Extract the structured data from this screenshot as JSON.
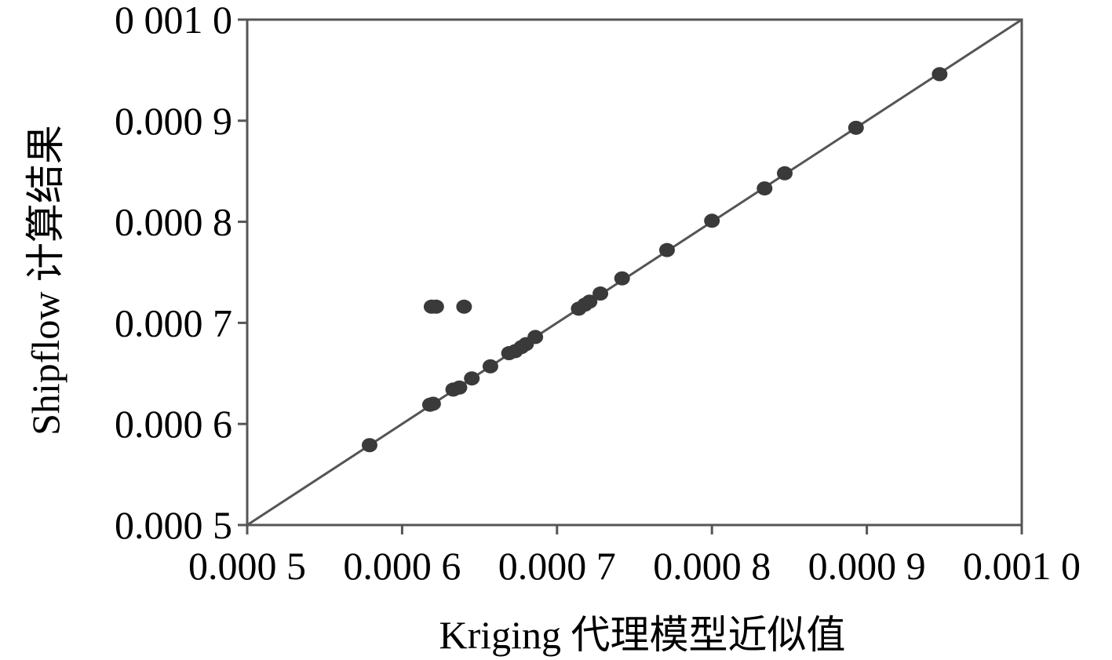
{
  "chart_data": {
    "type": "scatter",
    "title": "",
    "xlabel": "Kriging 代理模型近似值",
    "ylabel": "Shipflow 计算结果",
    "xlim": [
      0.0005,
      0.001
    ],
    "ylim": [
      0.0005,
      0.001
    ],
    "xticks": [
      {
        "value": 0.0005,
        "label": "0.000 5"
      },
      {
        "value": 0.0006,
        "label": "0.000 6"
      },
      {
        "value": 0.0007,
        "label": "0.000 7"
      },
      {
        "value": 0.0008,
        "label": "0.000 8"
      },
      {
        "value": 0.0009,
        "label": "0.000 9"
      },
      {
        "value": 0.001,
        "label": "0.001 0"
      }
    ],
    "yticks": [
      {
        "value": 0.0005,
        "label": "0.000 5"
      },
      {
        "value": 0.0006,
        "label": "0.000 6"
      },
      {
        "value": 0.0007,
        "label": "0.000 7"
      },
      {
        "value": 0.0008,
        "label": "0.000 8"
      },
      {
        "value": 0.0009,
        "label": "0.000 9"
      },
      {
        "value": 0.001,
        "label": "0 001 0"
      }
    ],
    "reference_line": {
      "from": [
        0.0005,
        0.0005
      ],
      "to": [
        0.001,
        0.001
      ]
    },
    "grid": false,
    "marker_color": "#3a3a3a",
    "line_color": "#555555",
    "points": [
      {
        "x": 0.000579,
        "y": 0.000579
      },
      {
        "x": 0.000618,
        "y": 0.000619
      },
      {
        "x": 0.00062,
        "y": 0.00062
      },
      {
        "x": 0.000633,
        "y": 0.000634
      },
      {
        "x": 0.000637,
        "y": 0.000636
      },
      {
        "x": 0.000645,
        "y": 0.000645
      },
      {
        "x": 0.000657,
        "y": 0.000657
      },
      {
        "x": 0.000669,
        "y": 0.00067
      },
      {
        "x": 0.000673,
        "y": 0.000672
      },
      {
        "x": 0.000677,
        "y": 0.000676
      },
      {
        "x": 0.00068,
        "y": 0.000679
      },
      {
        "x": 0.000686,
        "y": 0.000686
      },
      {
        "x": 0.000714,
        "y": 0.000714
      },
      {
        "x": 0.000718,
        "y": 0.000718
      },
      {
        "x": 0.000721,
        "y": 0.000721
      },
      {
        "x": 0.000728,
        "y": 0.000729
      },
      {
        "x": 0.000742,
        "y": 0.000744
      },
      {
        "x": 0.000771,
        "y": 0.000772
      },
      {
        "x": 0.0008,
        "y": 0.000801
      },
      {
        "x": 0.000834,
        "y": 0.000833
      },
      {
        "x": 0.000847,
        "y": 0.000848
      },
      {
        "x": 0.000893,
        "y": 0.000893
      },
      {
        "x": 0.000947,
        "y": 0.000946
      },
      {
        "x": 0.000619,
        "y": 0.000716
      },
      {
        "x": 0.000622,
        "y": 0.000716
      },
      {
        "x": 0.00064,
        "y": 0.000716
      }
    ]
  }
}
